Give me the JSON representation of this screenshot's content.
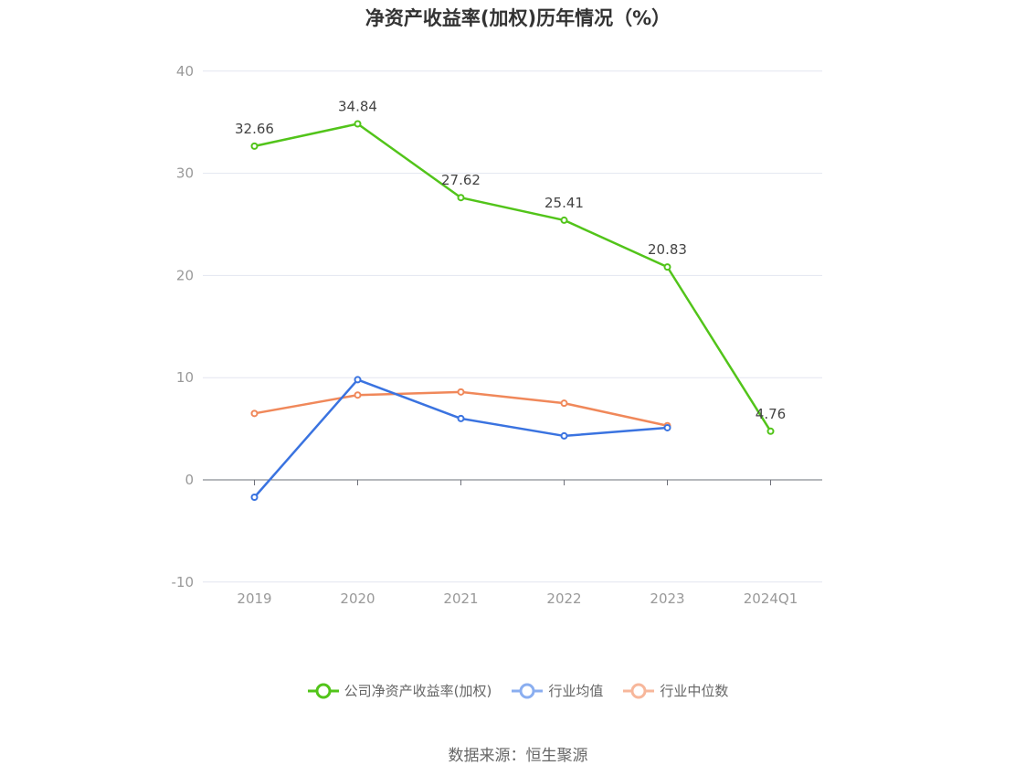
{
  "chart_data": {
    "type": "line",
    "title": "净资产收益率(加权)历年情况（%）",
    "categories": [
      "2019",
      "2020",
      "2021",
      "2022",
      "2023",
      "2024Q1"
    ],
    "ylim": [
      -10,
      40
    ],
    "yticks": [
      -10,
      0,
      10,
      20,
      30,
      40
    ],
    "grid": true,
    "legend_position": "bottom-center",
    "series": [
      {
        "name": "公司净资产收益率(加权)",
        "color": "#52c41a",
        "values": [
          32.66,
          34.84,
          27.62,
          25.41,
          20.83,
          4.76
        ],
        "show_labels": true
      },
      {
        "name": "行业均值",
        "color": "#3a73e0",
        "values": [
          -1.7,
          9.8,
          6.0,
          4.3,
          5.1,
          null
        ],
        "show_labels": false
      },
      {
        "name": "行业中位数",
        "color": "#f0885a",
        "values": [
          6.5,
          8.3,
          8.6,
          7.5,
          5.3,
          null
        ],
        "show_labels": false
      }
    ]
  },
  "legend_colors": [
    "#52c41a",
    "#8aaef0",
    "#f7b79b"
  ],
  "source": "数据来源：恒生聚源"
}
